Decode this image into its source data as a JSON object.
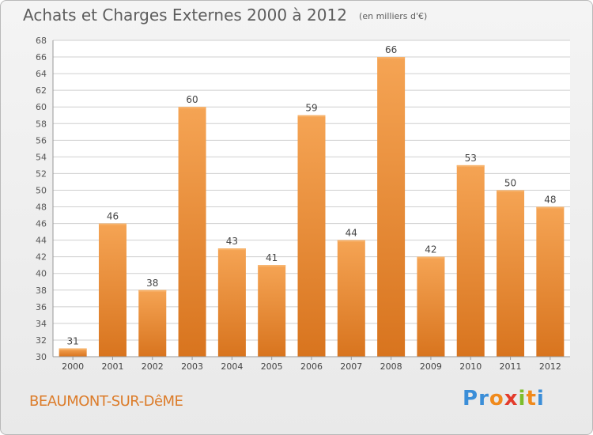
{
  "chart_data": {
    "type": "bar",
    "title": "Achats et Charges Externes 2000 à 2012",
    "subtitle": "(en milliers d'€)",
    "categories": [
      "2000",
      "2001",
      "2002",
      "2003",
      "2004",
      "2005",
      "2006",
      "2007",
      "2008",
      "2009",
      "2010",
      "2011",
      "2012"
    ],
    "values": [
      31,
      46,
      38,
      60,
      43,
      41,
      59,
      44,
      66,
      42,
      53,
      50,
      48
    ],
    "ylim": [
      30,
      68
    ],
    "yticks": [
      30,
      32,
      34,
      36,
      38,
      40,
      42,
      44,
      46,
      48,
      50,
      52,
      54,
      56,
      58,
      60,
      62,
      64,
      66,
      68
    ],
    "grid": true,
    "bar_color_top": "#f5a454",
    "bar_color_bottom": "#d8741e",
    "grid_color": "#cfcfcf"
  },
  "footer": {
    "city": "BEAUMONT-SUR-DêME",
    "brand_letters": [
      {
        "ch": "P",
        "color": "#3b8ed8"
      },
      {
        "ch": "r",
        "color": "#3b8ed8"
      },
      {
        "ch": "o",
        "color": "#f08a1c"
      },
      {
        "ch": "x",
        "color": "#e33b2b"
      },
      {
        "ch": "i",
        "color": "#7cbd2b"
      },
      {
        "ch": "t",
        "color": "#f08a1c"
      },
      {
        "ch": "i",
        "color": "#3b8ed8"
      }
    ]
  }
}
